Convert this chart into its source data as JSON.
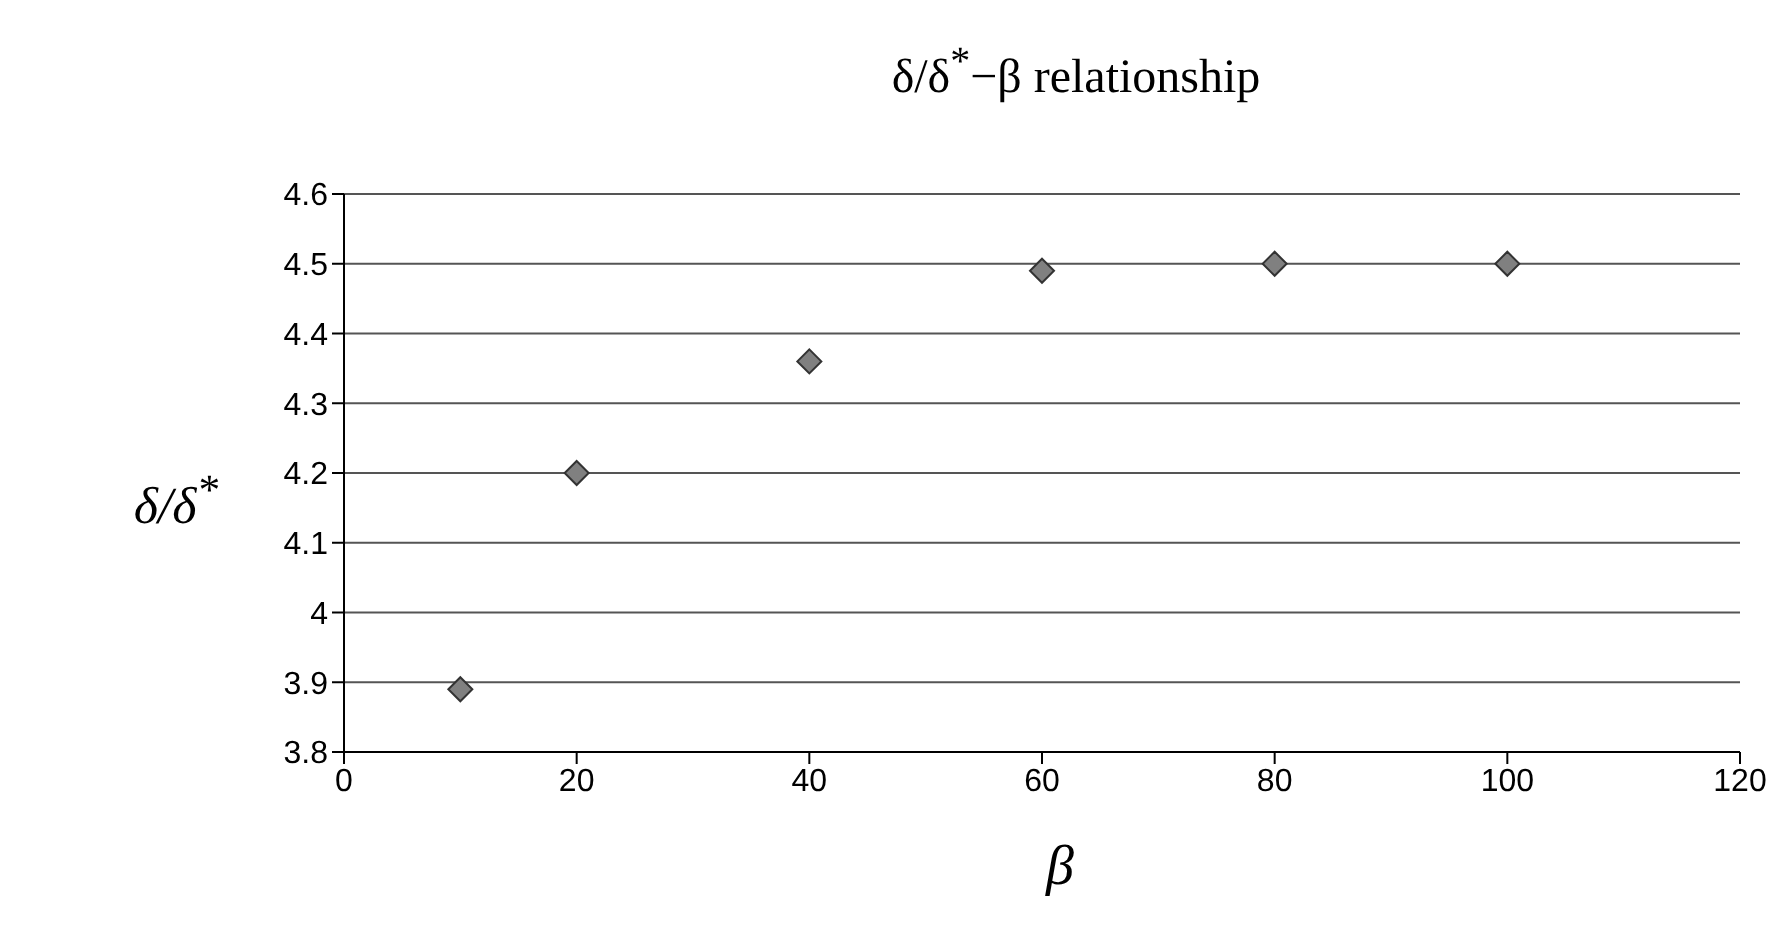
{
  "chart_data": {
    "type": "scatter",
    "title": "δ/δ$^{*}$−β relationship",
    "xlabel": "β",
    "ylabel": "δ/δ$^{*}$",
    "x": [
      10,
      20,
      40,
      60,
      80,
      100
    ],
    "series": [
      {
        "color": "#808080",
        "values": [
          3.89,
          4.2,
          4.36,
          4.49,
          4.5,
          4.5
        ]
      }
    ],
    "xlim": [
      0,
      120
    ],
    "xticks": [
      0,
      20,
      40,
      60,
      80,
      100,
      120
    ],
    "ylim": [
      3.8,
      4.6
    ],
    "yticks": [
      3.8,
      3.9,
      4,
      4.1,
      4.2,
      4.3,
      4.4,
      4.5,
      4.6
    ],
    "grid": "y",
    "marker": "diamond",
    "legend": false
  }
}
